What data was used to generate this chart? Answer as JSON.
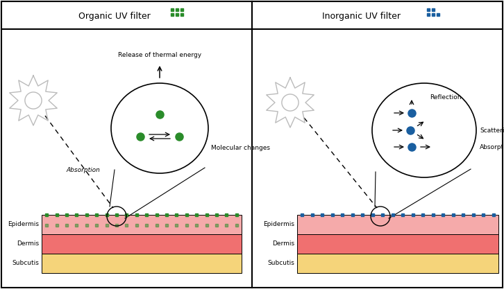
{
  "title_left": "Organic UV filter",
  "title_right": "Inorganic UV filter",
  "skin_layers": [
    "Epidermis",
    "Dermis",
    "Subcutis"
  ],
  "skin_colors_left": [
    "#F5AAAA",
    "#F07070",
    "#F5D47A"
  ],
  "skin_colors_right": [
    "#F5AAAA",
    "#F07070",
    "#F5D47A"
  ],
  "dot_color_left": "#2A8C2A",
  "dot_color_right": "#1A5FA0",
  "np_color_left": "#2A8C2A",
  "np_color_right": "#1A5FA0",
  "sun_color": "#BBBBBB",
  "bg_color": "#FFFFFF",
  "title_fontsize": 9,
  "label_fontsize": 6.5,
  "skin_label_fontsize": 6.5
}
